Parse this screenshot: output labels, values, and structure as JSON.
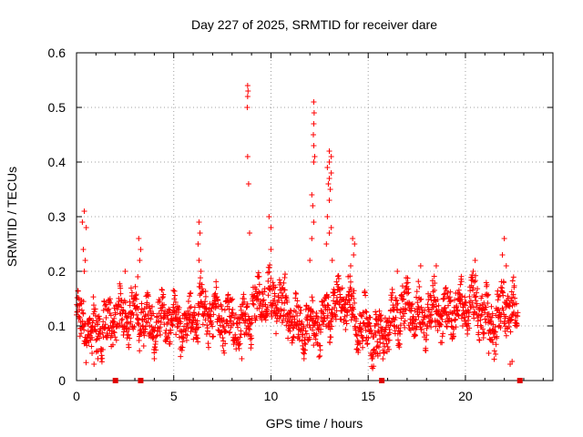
{
  "chart_data": {
    "type": "scatter",
    "title": "Day 227 of 2025, SRMTID for receiver dare",
    "xlabel": "GPS time / hours",
    "ylabel": "SRMTID / TECUs",
    "xlim": [
      0,
      24.5
    ],
    "ylim": [
      0,
      0.6
    ],
    "x_ticks": [
      0,
      5,
      10,
      15,
      20
    ],
    "y_ticks": [
      0,
      0.1,
      0.2,
      0.3,
      0.4,
      0.5,
      0.6
    ],
    "x_tick_labels": [
      "0",
      "5",
      "10",
      "15",
      "20"
    ],
    "y_tick_labels": [
      "0",
      "0.1",
      "0.2",
      "0.3",
      "0.4",
      "0.5",
      "0.6"
    ],
    "grid": true,
    "marker": "plus",
    "color": "#ff0000",
    "time_range_hours": [
      0,
      22.7
    ],
    "baseline": [
      [
        0,
        0.11
      ],
      [
        0.5,
        0.1
      ],
      [
        1,
        0.09
      ],
      [
        1.5,
        0.1
      ],
      [
        2,
        0.11
      ],
      [
        2.5,
        0.12
      ],
      [
        3,
        0.12
      ],
      [
        3.5,
        0.11
      ],
      [
        4,
        0.1
      ],
      [
        4.5,
        0.12
      ],
      [
        5,
        0.11
      ],
      [
        5.5,
        0.1
      ],
      [
        6,
        0.12
      ],
      [
        6.5,
        0.13
      ],
      [
        7,
        0.12
      ],
      [
        7.5,
        0.11
      ],
      [
        8,
        0.11
      ],
      [
        8.5,
        0.1
      ],
      [
        9,
        0.12
      ],
      [
        9.5,
        0.15
      ],
      [
        10,
        0.15
      ],
      [
        10.5,
        0.14
      ],
      [
        11,
        0.12
      ],
      [
        11.5,
        0.1
      ],
      [
        12,
        0.1
      ],
      [
        12.5,
        0.1
      ],
      [
        13,
        0.13
      ],
      [
        13.5,
        0.14
      ],
      [
        14,
        0.15
      ],
      [
        14.5,
        0.1
      ],
      [
        15,
        0.09
      ],
      [
        15.5,
        0.07
      ],
      [
        16,
        0.1
      ],
      [
        16.5,
        0.12
      ],
      [
        17,
        0.13
      ],
      [
        17.5,
        0.12
      ],
      [
        18,
        0.12
      ],
      [
        18.5,
        0.13
      ],
      [
        19,
        0.12
      ],
      [
        19.5,
        0.13
      ],
      [
        20,
        0.14
      ],
      [
        20.5,
        0.14
      ],
      [
        21,
        0.12
      ],
      [
        21.5,
        0.1
      ],
      [
        22,
        0.14
      ],
      [
        22.7,
        0.12
      ]
    ],
    "spikes": [
      {
        "x": 0.4,
        "y": 0.31
      },
      {
        "x": 0.3,
        "y": 0.29
      },
      {
        "x": 0.5,
        "y": 0.28
      },
      {
        "x": 0.35,
        "y": 0.24
      },
      {
        "x": 0.45,
        "y": 0.22
      },
      {
        "x": 0.4,
        "y": 0.2
      },
      {
        "x": 2.5,
        "y": 0.2
      },
      {
        "x": 3.2,
        "y": 0.26
      },
      {
        "x": 3.3,
        "y": 0.24
      },
      {
        "x": 3.25,
        "y": 0.22
      },
      {
        "x": 3.15,
        "y": 0.19
      },
      {
        "x": 6.3,
        "y": 0.29
      },
      {
        "x": 6.35,
        "y": 0.27
      },
      {
        "x": 6.25,
        "y": 0.25
      },
      {
        "x": 6.3,
        "y": 0.22
      },
      {
        "x": 6.4,
        "y": 0.2
      },
      {
        "x": 8.8,
        "y": 0.54
      },
      {
        "x": 8.82,
        "y": 0.53
      },
      {
        "x": 8.8,
        "y": 0.52
      },
      {
        "x": 8.78,
        "y": 0.5
      },
      {
        "x": 8.8,
        "y": 0.41
      },
      {
        "x": 8.85,
        "y": 0.36
      },
      {
        "x": 8.9,
        "y": 0.27
      },
      {
        "x": 9.9,
        "y": 0.3
      },
      {
        "x": 10.0,
        "y": 0.28
      },
      {
        "x": 10.0,
        "y": 0.24
      },
      {
        "x": 12.2,
        "y": 0.51
      },
      {
        "x": 12.22,
        "y": 0.49
      },
      {
        "x": 12.2,
        "y": 0.47
      },
      {
        "x": 12.18,
        "y": 0.45
      },
      {
        "x": 12.2,
        "y": 0.43
      },
      {
        "x": 12.25,
        "y": 0.41
      },
      {
        "x": 12.2,
        "y": 0.4
      },
      {
        "x": 12.1,
        "y": 0.34
      },
      {
        "x": 12.15,
        "y": 0.32
      },
      {
        "x": 12.2,
        "y": 0.29
      },
      {
        "x": 12.1,
        "y": 0.26
      },
      {
        "x": 12.0,
        "y": 0.22
      },
      {
        "x": 13.0,
        "y": 0.42
      },
      {
        "x": 13.1,
        "y": 0.41
      },
      {
        "x": 13.0,
        "y": 0.4
      },
      {
        "x": 12.9,
        "y": 0.39
      },
      {
        "x": 13.1,
        "y": 0.38
      },
      {
        "x": 13.0,
        "y": 0.37
      },
      {
        "x": 12.95,
        "y": 0.36
      },
      {
        "x": 13.05,
        "y": 0.35
      },
      {
        "x": 13.0,
        "y": 0.33
      },
      {
        "x": 12.9,
        "y": 0.3
      },
      {
        "x": 13.1,
        "y": 0.28
      },
      {
        "x": 13.0,
        "y": 0.27
      },
      {
        "x": 12.85,
        "y": 0.25
      },
      {
        "x": 13.15,
        "y": 0.22
      },
      {
        "x": 14.2,
        "y": 0.26
      },
      {
        "x": 14.3,
        "y": 0.25
      },
      {
        "x": 14.25,
        "y": 0.23
      },
      {
        "x": 14.1,
        "y": 0.21
      },
      {
        "x": 22.0,
        "y": 0.26
      },
      {
        "x": 21.9,
        "y": 0.23
      },
      {
        "x": 22.1,
        "y": 0.21
      },
      {
        "x": 20.5,
        "y": 0.22
      },
      {
        "x": 20.4,
        "y": 0.2
      },
      {
        "x": 18.5,
        "y": 0.21
      },
      {
        "x": 17.7,
        "y": 0.21
      },
      {
        "x": 16.5,
        "y": 0.2
      }
    ],
    "lows": [
      {
        "x": 0.8,
        "y": 0.05
      },
      {
        "x": 0.9,
        "y": 0.03
      },
      {
        "x": 1.1,
        "y": 0.04
      },
      {
        "x": 4.0,
        "y": 0.04
      },
      {
        "x": 8.5,
        "y": 0.04
      },
      {
        "x": 11.7,
        "y": 0.04
      },
      {
        "x": 15.4,
        "y": 0.05
      },
      {
        "x": 15.5,
        "y": 0.045
      },
      {
        "x": 15.6,
        "y": 0.05
      },
      {
        "x": 22.3,
        "y": 0.03
      },
      {
        "x": 22.4,
        "y": 0.035
      },
      {
        "x": 21.2,
        "y": 0.05
      }
    ],
    "gap_markers_x": [
      2.0,
      3.3,
      15.7,
      22.8
    ]
  }
}
